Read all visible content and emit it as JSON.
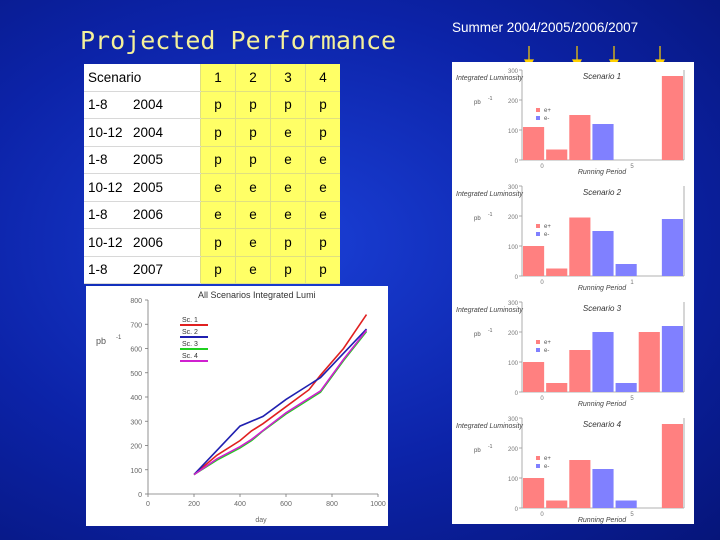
{
  "title": "Projected Performance",
  "summer_label": "Summer   2004/2005/2006/2007",
  "table": {
    "header": {
      "label": "Scenario",
      "cols": [
        "1",
        "2",
        "3",
        "4"
      ]
    },
    "rows": [
      {
        "range": "1-8",
        "year": "2004",
        "vals": [
          "p",
          "p",
          "p",
          "p"
        ]
      },
      {
        "range": "10-12",
        "year": "2004",
        "vals": [
          "p",
          "p",
          "e",
          "p"
        ]
      },
      {
        "range": "1-8",
        "year": "2005",
        "vals": [
          "p",
          "p",
          "e",
          "e"
        ]
      },
      {
        "range": "10-12",
        "year": "2005",
        "vals": [
          "e",
          "e",
          "e",
          "e"
        ]
      },
      {
        "range": "1-8",
        "year": "2006",
        "vals": [
          "e",
          "e",
          "e",
          "e"
        ]
      },
      {
        "range": "10-12",
        "year": "2006",
        "vals": [
          "p",
          "e",
          "p",
          "p"
        ]
      },
      {
        "range": "1-8",
        "year": "2007",
        "vals": [
          "p",
          "e",
          "p",
          "p"
        ]
      }
    ]
  },
  "colors": {
    "sc1": "#e02020",
    "sc2": "#2020b0",
    "sc3": "#20d020",
    "sc4": "#d020d0",
    "e_plus": "#ff8080",
    "e_minus": "#8080ff"
  },
  "chart_data": [
    {
      "type": "line",
      "title": "All Scenarios Integrated Lumi",
      "xlabel": "day",
      "ylabel": "pb",
      "ylabel_extra": "-1",
      "xlim": [
        0,
        1000
      ],
      "ylim": [
        0,
        800
      ],
      "xticks": [
        0,
        200,
        400,
        600,
        800,
        1000
      ],
      "yticks": [
        0,
        100,
        200,
        300,
        400,
        500,
        600,
        700,
        800
      ],
      "series": [
        {
          "name": "Sc. 1",
          "color": "#e02020",
          "x": [
            200,
            300,
            400,
            450,
            500,
            600,
            700,
            750,
            850,
            950
          ],
          "y": [
            80,
            160,
            220,
            260,
            290,
            360,
            430,
            490,
            600,
            740
          ]
        },
        {
          "name": "Sc. 2",
          "color": "#2020b0",
          "x": [
            200,
            300,
            400,
            450,
            500,
            600,
            700,
            750,
            850,
            950
          ],
          "y": [
            80,
            180,
            280,
            300,
            320,
            390,
            450,
            480,
            580,
            680
          ]
        },
        {
          "name": "Sc. 3",
          "color": "#20d020",
          "x": [
            200,
            300,
            400,
            450,
            500,
            600,
            700,
            750,
            850,
            950
          ],
          "y": [
            80,
            140,
            190,
            220,
            260,
            330,
            390,
            420,
            550,
            670
          ]
        },
        {
          "name": "Sc. 4",
          "color": "#d020d0",
          "x": [
            200,
            300,
            400,
            450,
            500,
            600,
            700,
            750,
            850,
            950
          ],
          "y": [
            80,
            145,
            195,
            225,
            262,
            335,
            395,
            425,
            555,
            675
          ]
        }
      ]
    },
    {
      "type": "bar",
      "title": "Scenario 1",
      "ylabel": "Integrated Luminosity",
      "ylabel_unit": "pb",
      "ylabel_extra": "-1",
      "xlabel": "Running Period",
      "ylim": [
        0,
        300
      ],
      "yticks": [
        0,
        100,
        200,
        300
      ],
      "xticks": [
        "0",
        "5"
      ],
      "legend": [
        "e+",
        "e-"
      ],
      "series": [
        {
          "name": "e+",
          "color": "#ff8080",
          "values": [
            110,
            35,
            0,
            0,
            0,
            0,
            280
          ]
        },
        {
          "name": "e-",
          "color": "#8080ff",
          "values": [
            0,
            0,
            0,
            120,
            0,
            0,
            0
          ]
        }
      ],
      "extra_bars": [
        {
          "index": 2,
          "value": 150,
          "series": "e+"
        },
        {
          "index": 3,
          "value": 10,
          "series": "e-"
        }
      ]
    },
    {
      "type": "bar",
      "title": "Scenario 2",
      "ylabel": "Integrated Luminosity",
      "ylabel_unit": "pb",
      "ylabel_extra": "-1",
      "xlabel": "Running Period",
      "ylim": [
        0,
        300
      ],
      "yticks": [
        0,
        100,
        200,
        300
      ],
      "xticks": [
        "0",
        "1"
      ],
      "legend": [
        "e+",
        "e-"
      ],
      "series": [
        {
          "name": "e+",
          "color": "#ff8080",
          "values": [
            100,
            25,
            0,
            0,
            0,
            0,
            0
          ]
        },
        {
          "name": "e-",
          "color": "#8080ff",
          "values": [
            0,
            0,
            0,
            150,
            40,
            0,
            190
          ]
        }
      ],
      "extra_bars": [
        {
          "index": 2,
          "value": 195,
          "series": "e+"
        },
        {
          "index": 3,
          "value": 10,
          "series": "e-"
        }
      ]
    },
    {
      "type": "bar",
      "title": "Scenario 3",
      "ylabel": "Integrated Luminosity",
      "ylabel_unit": "pb",
      "ylabel_extra": "-1",
      "xlabel": "Running Period",
      "ylim": [
        0,
        300
      ],
      "yticks": [
        0,
        100,
        200,
        300
      ],
      "xticks": [
        "0",
        "5"
      ],
      "legend": [
        "e+",
        "e-"
      ],
      "series": [
        {
          "name": "e+",
          "color": "#ff8080",
          "values": [
            100,
            30,
            0,
            0,
            0,
            200,
            0
          ]
        },
        {
          "name": "e-",
          "color": "#8080ff",
          "values": [
            0,
            0,
            0,
            200,
            30,
            0,
            220
          ]
        }
      ],
      "extra_bars": [
        {
          "index": 2,
          "value": 140,
          "series": "e+"
        },
        {
          "index": 3,
          "value": 10,
          "series": "e-"
        }
      ]
    },
    {
      "type": "bar",
      "title": "Scenario 4",
      "ylabel": "Integrated Luminosity",
      "ylabel_unit": "pb",
      "ylabel_extra": "-1",
      "xlabel": "Running Period",
      "ylim": [
        0,
        300
      ],
      "yticks": [
        0,
        100,
        200,
        300
      ],
      "xticks": [
        "0",
        "5"
      ],
      "legend": [
        "e+",
        "e-"
      ],
      "series": [
        {
          "name": "e+",
          "color": "#ff8080",
          "values": [
            100,
            25,
            0,
            0,
            0,
            0,
            280
          ]
        },
        {
          "name": "e-",
          "color": "#8080ff",
          "values": [
            0,
            0,
            0,
            130,
            25,
            0,
            0
          ]
        }
      ],
      "extra_bars": [
        {
          "index": 2,
          "value": 160,
          "series": "e+"
        },
        {
          "index": 3,
          "value": 10,
          "series": "e-"
        }
      ]
    }
  ]
}
